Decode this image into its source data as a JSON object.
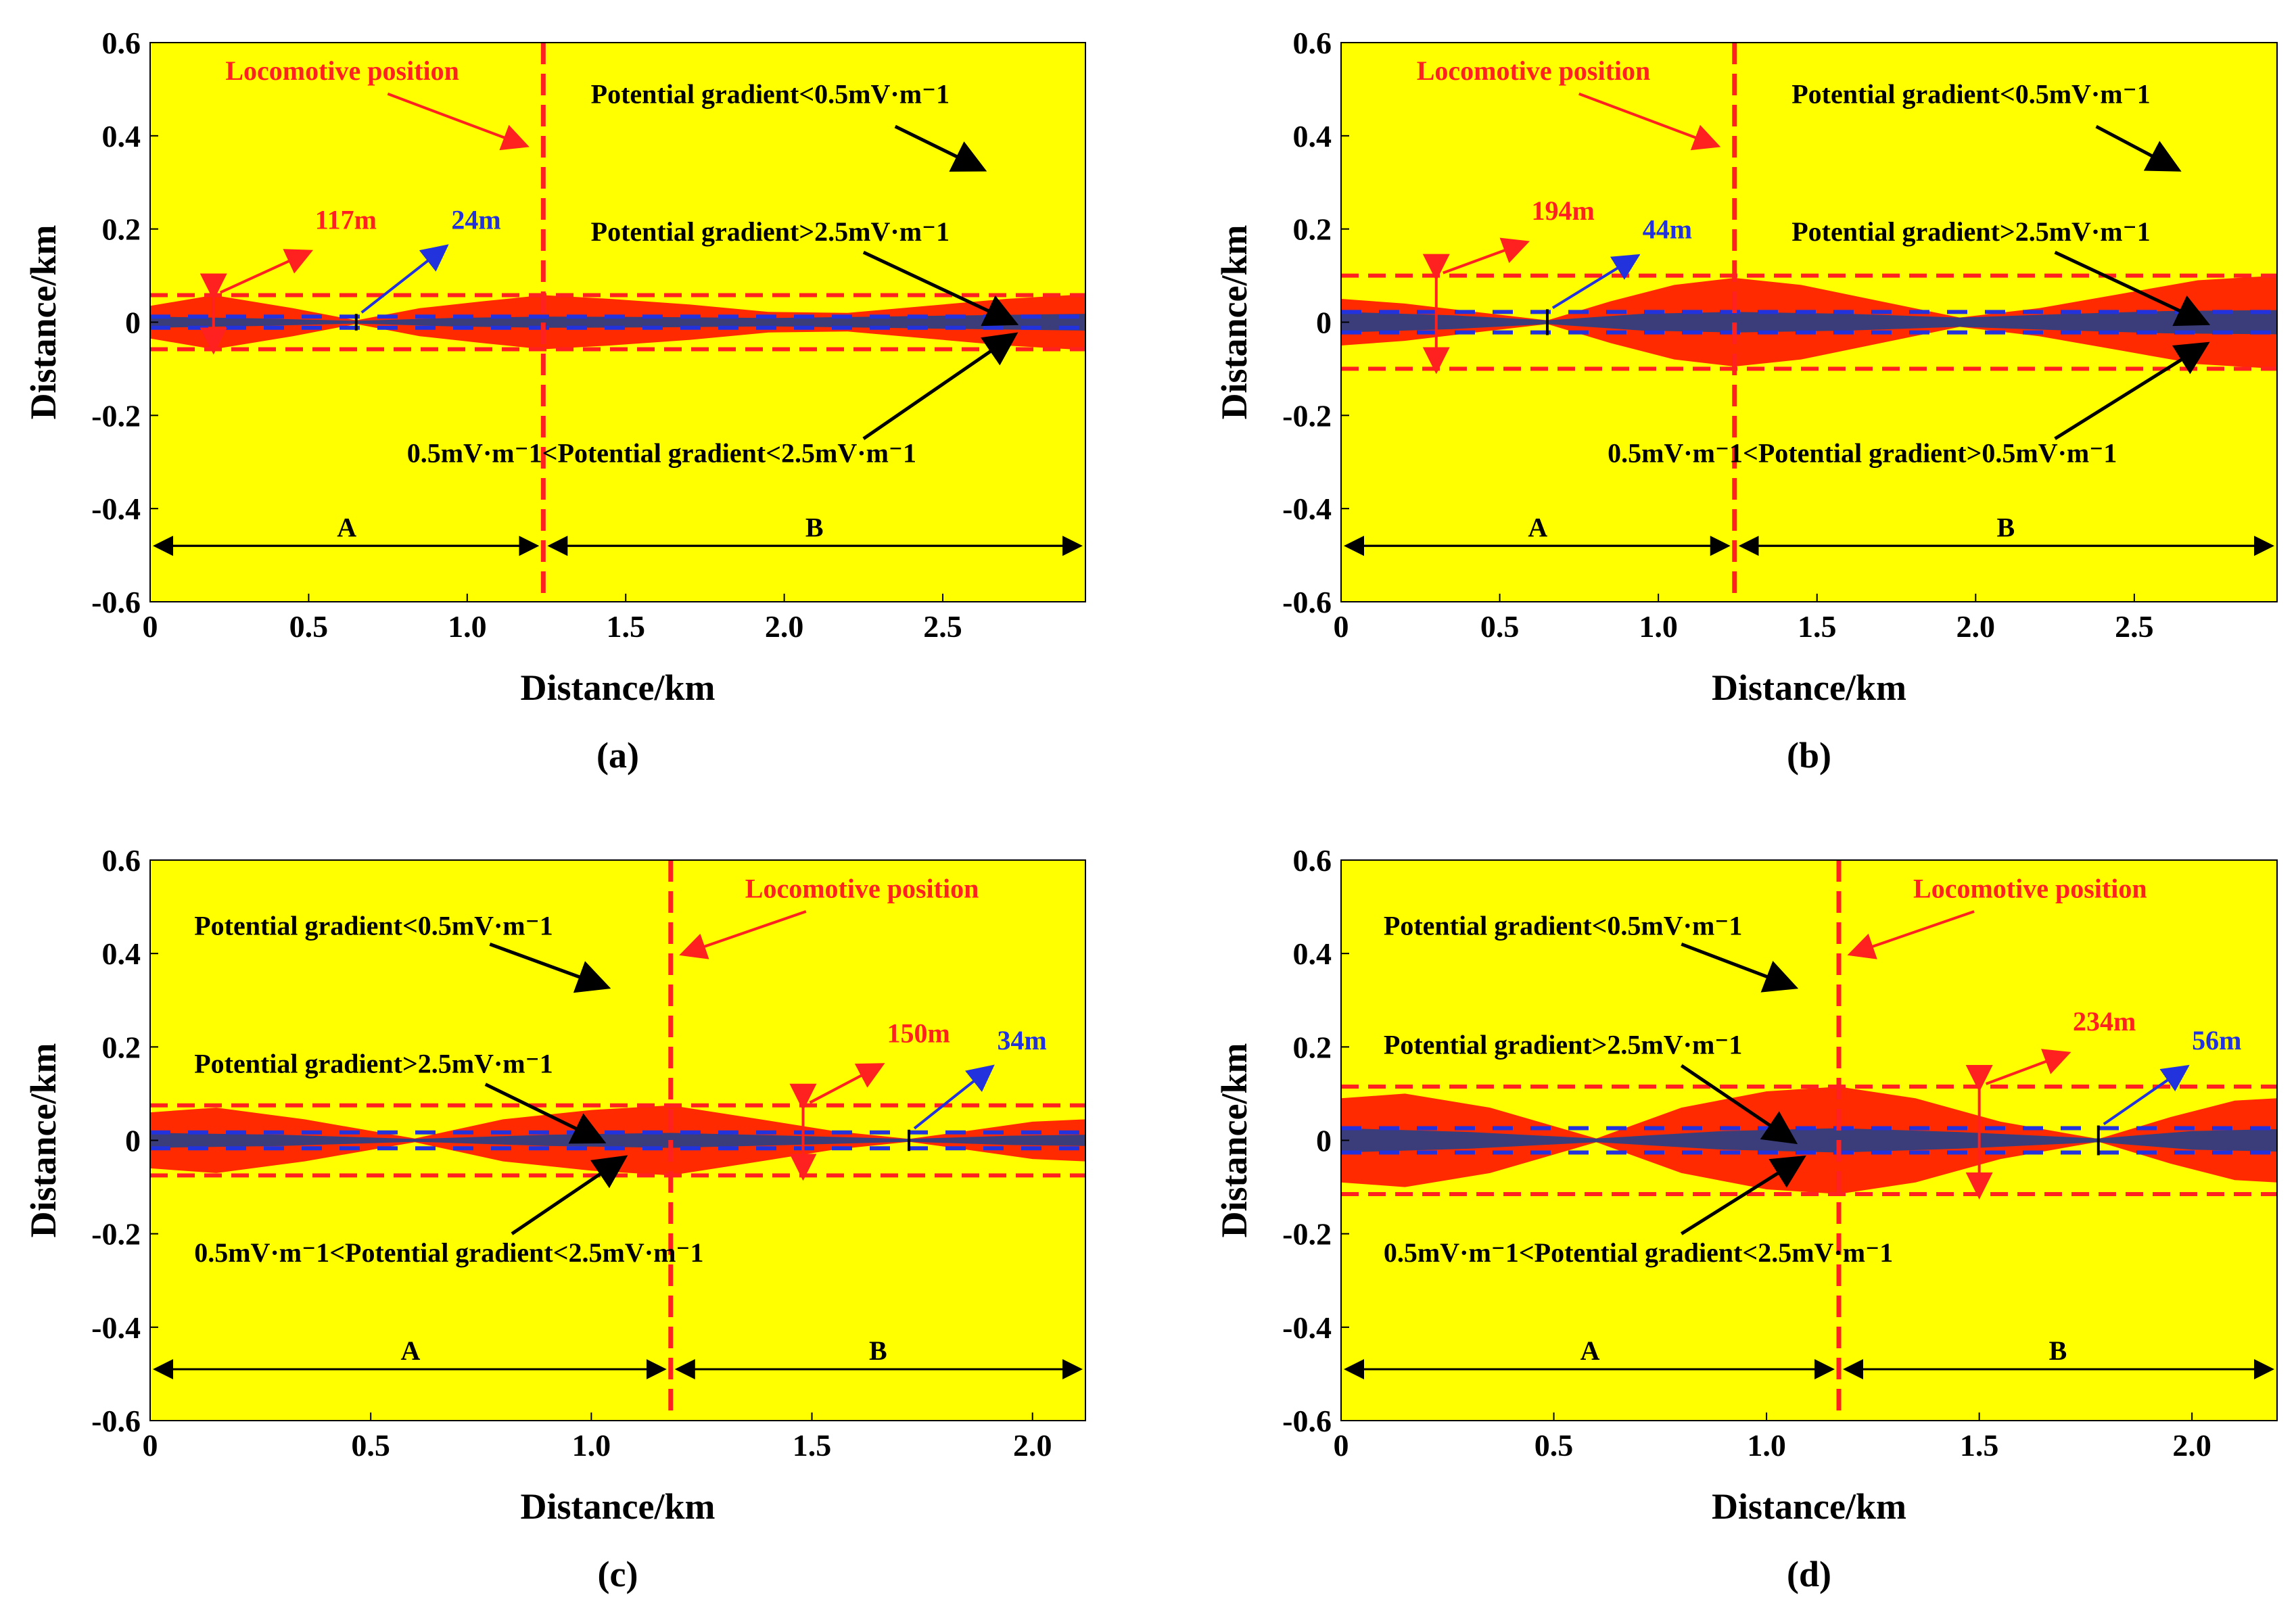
{
  "figure": {
    "colors": {
      "background": "#ffff00",
      "mid_band": "#ff2a00",
      "high_band": "#3a3d7a",
      "locomotive_line": "#ff2020",
      "blue_dash": "#2233dd",
      "black": "#000000"
    }
  },
  "chart_data": [
    {
      "type": "heatmap",
      "panel_label": "(a)",
      "xlabel": "Distance/km",
      "ylabel": "Distance/km",
      "xlim": [
        0,
        2.95
      ],
      "ylim": [
        -0.6,
        0.6
      ],
      "xticks": [
        "0",
        "0.5",
        "1.0",
        "1.5",
        "2.0",
        "2.5"
      ],
      "xtick_values": [
        0,
        0.5,
        1.0,
        1.5,
        2.0,
        2.5
      ],
      "yticks": [
        "0.6",
        "0.4",
        "0.2",
        "0",
        "-0.2",
        "-0.4",
        "-0.6"
      ],
      "ytick_values": [
        0.6,
        0.4,
        0.2,
        0,
        -0.2,
        -0.4,
        -0.6
      ],
      "locomotive_x": 1.24,
      "locomotive_label": "Locomotive position",
      "red_profile": {
        "x": [
          0,
          0.2,
          0.45,
          0.65,
          0.85,
          1.05,
          1.24,
          1.45,
          1.7,
          1.95,
          2.2,
          2.45,
          2.7,
          2.95
        ],
        "half_width": [
          0.035,
          0.058,
          0.03,
          0.004,
          0.03,
          0.045,
          0.058,
          0.05,
          0.038,
          0.022,
          0.02,
          0.035,
          0.05,
          0.06
        ]
      },
      "blue_profile": {
        "x": [
          0,
          0.35,
          0.65,
          0.95,
          1.24,
          1.6,
          1.95,
          2.3,
          2.6,
          2.95
        ],
        "half_width": [
          0.012,
          0.008,
          0.003,
          0.009,
          0.012,
          0.011,
          0.009,
          0.012,
          0.015,
          0.018
        ]
      },
      "red_dash_y": 0.058,
      "blue_dash_y": 0.012,
      "red_measure": {
        "x": 0.2,
        "label": "117m",
        "label_x": 0.52,
        "label_y": 0.2
      },
      "blue_measure": {
        "x": 0.65,
        "label": "24m",
        "label_x": 0.95,
        "label_y": 0.2
      },
      "annotations": [
        {
          "text": "Potential gradient<0.5mV·m⁻1",
          "text_x": 1.39,
          "text_y": 0.47,
          "arrow_from": [
            2.35,
            0.42
          ],
          "arrow_to": [
            2.62,
            0.33
          ],
          "color": "black"
        },
        {
          "text": "Potential gradient>2.5mV·m⁻1",
          "text_x": 1.39,
          "text_y": 0.175,
          "arrow_from": [
            2.25,
            0.15
          ],
          "arrow_to": [
            2.72,
            0.0
          ],
          "color": "black"
        },
        {
          "text": "0.5mV·m⁻1<Potential gradient<2.5mV·m⁻1",
          "text_x": 0.81,
          "text_y": -0.3,
          "arrow_from": [
            2.25,
            -0.25
          ],
          "arrow_to": [
            2.72,
            -0.03
          ],
          "color": "black"
        }
      ],
      "region_y": -0.48,
      "region_a_label": "A",
      "region_b_label": "B"
    },
    {
      "type": "heatmap",
      "panel_label": "(b)",
      "xlabel": "Distance/km",
      "ylabel": "Distance/km",
      "xlim": [
        0,
        2.95
      ],
      "ylim": [
        -0.6,
        0.6
      ],
      "xticks": [
        "0",
        "0.5",
        "1.0",
        "1.5",
        "2.0",
        "2.5"
      ],
      "xtick_values": [
        0,
        0.5,
        1.0,
        1.5,
        2.0,
        2.5
      ],
      "yticks": [
        "0.6",
        "0.4",
        "0.2",
        "0",
        "-0.2",
        "-0.4",
        "-0.6"
      ],
      "ytick_values": [
        0.6,
        0.4,
        0.2,
        0,
        -0.2,
        -0.4,
        -0.6
      ],
      "locomotive_x": 1.24,
      "locomotive_label": "Locomotive position",
      "red_profile": {
        "x": [
          0,
          0.2,
          0.45,
          0.65,
          0.85,
          1.05,
          1.24,
          1.45,
          1.7,
          1.95,
          2.2,
          2.45,
          2.7,
          2.95
        ],
        "half_width": [
          0.05,
          0.04,
          0.02,
          0.004,
          0.045,
          0.08,
          0.095,
          0.08,
          0.045,
          0.01,
          0.03,
          0.06,
          0.09,
          0.1
        ]
      },
      "blue_profile": {
        "x": [
          0,
          0.35,
          0.65,
          0.95,
          1.24,
          1.6,
          1.95,
          2.3,
          2.6,
          2.95
        ],
        "half_width": [
          0.022,
          0.015,
          0.004,
          0.018,
          0.022,
          0.018,
          0.01,
          0.018,
          0.024,
          0.026
        ]
      },
      "red_dash_y": 0.1,
      "blue_dash_y": 0.022,
      "red_measure": {
        "x": 0.3,
        "label": "194m",
        "label_x": 0.6,
        "label_y": 0.22
      },
      "blue_measure": {
        "x": 0.65,
        "label": "44m",
        "label_x": 0.95,
        "label_y": 0.18
      },
      "annotations": [
        {
          "text": "Potential gradient<0.5mV·m⁻1",
          "text_x": 1.42,
          "text_y": 0.47,
          "arrow_from": [
            2.38,
            0.42
          ],
          "arrow_to": [
            2.63,
            0.33
          ],
          "color": "black"
        },
        {
          "text": "Potential gradient>2.5mV·m⁻1",
          "text_x": 1.42,
          "text_y": 0.175,
          "arrow_from": [
            2.25,
            0.15
          ],
          "arrow_to": [
            2.72,
            0.0
          ],
          "color": "black"
        },
        {
          "text": "0.5mV·m⁻1<Potential gradient>0.5mV·m⁻1",
          "text_x": 0.84,
          "text_y": -0.3,
          "arrow_from": [
            2.25,
            -0.25
          ],
          "arrow_to": [
            2.72,
            -0.05
          ],
          "color": "black"
        }
      ],
      "region_y": -0.48,
      "region_a_label": "A",
      "region_b_label": "B"
    },
    {
      "type": "heatmap",
      "panel_label": "(c)",
      "xlabel": "Distance/km",
      "ylabel": "Distance/km",
      "xlim": [
        0,
        2.12
      ],
      "ylim": [
        -0.6,
        0.6
      ],
      "xticks": [
        "0",
        "0.5",
        "1.0",
        "1.5",
        "2.0"
      ],
      "xtick_values": [
        0,
        0.5,
        1.0,
        1.5,
        2.0
      ],
      "yticks": [
        "0.6",
        "0.4",
        "0.2",
        "0",
        "-0.2",
        "-0.4",
        "-0.6"
      ],
      "ytick_values": [
        0.6,
        0.4,
        0.2,
        0,
        -0.2,
        -0.4,
        -0.6
      ],
      "locomotive_x": 1.18,
      "locomotive_label": "Locomotive position",
      "red_profile": {
        "x": [
          0,
          0.15,
          0.35,
          0.6,
          0.8,
          1.0,
          1.18,
          1.35,
          1.55,
          1.72,
          1.85,
          2.0,
          2.12
        ],
        "half_width": [
          0.06,
          0.07,
          0.045,
          0.004,
          0.045,
          0.065,
          0.075,
          0.05,
          0.02,
          0.003,
          0.02,
          0.04,
          0.045
        ]
      },
      "blue_profile": {
        "x": [
          0,
          0.3,
          0.6,
          0.9,
          1.18,
          1.45,
          1.72,
          1.95,
          2.12
        ],
        "half_width": [
          0.016,
          0.012,
          0.003,
          0.012,
          0.016,
          0.01,
          0.003,
          0.01,
          0.012
        ]
      },
      "red_dash_y": 0.075,
      "blue_dash_y": 0.017,
      "red_measure": {
        "x": 1.48,
        "label": "150m",
        "label_x": 1.67,
        "label_y": 0.21
      },
      "blue_measure": {
        "x": 1.72,
        "label": "34m",
        "label_x": 1.92,
        "label_y": 0.195
      },
      "annotations": [
        {
          "text": "Potential gradient<0.5mV·m⁻1",
          "text_x": 0.1,
          "text_y": 0.44,
          "arrow_from": [
            0.77,
            0.42
          ],
          "arrow_to": [
            1.03,
            0.33
          ],
          "color": "black"
        },
        {
          "text": "Potential gradient>2.5mV·m⁻1",
          "text_x": 0.1,
          "text_y": 0.145,
          "arrow_from": [
            0.76,
            0.12
          ],
          "arrow_to": [
            1.02,
            0.0
          ],
          "color": "black"
        },
        {
          "text": "0.5mV·m⁻1<Potential gradient<2.5mV·m⁻1",
          "text_x": 0.1,
          "text_y": -0.26,
          "arrow_from": [
            0.82,
            -0.2
          ],
          "arrow_to": [
            1.07,
            -0.04
          ],
          "color": "black"
        }
      ],
      "region_y": -0.49,
      "region_a_label": "A",
      "region_b_label": "B"
    },
    {
      "type": "heatmap",
      "panel_label": "(d)",
      "xlabel": "Distance/km",
      "ylabel": "Distance/km",
      "xlim": [
        0,
        2.2
      ],
      "ylim": [
        -0.6,
        0.6
      ],
      "xticks": [
        "0",
        "0.5",
        "1.0",
        "1.5",
        "2.0"
      ],
      "xtick_values": [
        0,
        0.5,
        1.0,
        1.5,
        2.0
      ],
      "yticks": [
        "0.6",
        "0.4",
        "0.2",
        "0",
        "-0.2",
        "-0.4",
        "-0.6"
      ],
      "ytick_values": [
        0.6,
        0.4,
        0.2,
        0,
        -0.2,
        -0.4,
        -0.6
      ],
      "locomotive_x": 1.17,
      "locomotive_label": "Locomotive position",
      "red_profile": {
        "x": [
          0,
          0.15,
          0.35,
          0.6,
          0.8,
          1.0,
          1.17,
          1.35,
          1.55,
          1.78,
          1.95,
          2.1,
          2.2
        ],
        "half_width": [
          0.09,
          0.1,
          0.07,
          0.004,
          0.07,
          0.105,
          0.115,
          0.09,
          0.04,
          0.003,
          0.05,
          0.085,
          0.09
        ]
      },
      "blue_profile": {
        "x": [
          0,
          0.3,
          0.6,
          0.9,
          1.17,
          1.45,
          1.78,
          2.0,
          2.2
        ],
        "half_width": [
          0.026,
          0.018,
          0.004,
          0.02,
          0.026,
          0.018,
          0.004,
          0.02,
          0.024
        ]
      },
      "red_dash_y": 0.115,
      "blue_dash_y": 0.026,
      "red_measure": {
        "x": 1.5,
        "label": "234m",
        "label_x": 1.72,
        "label_y": 0.235
      },
      "blue_measure": {
        "x": 1.78,
        "label": "56m",
        "label_x": 2.0,
        "label_y": 0.195
      },
      "annotations": [
        {
          "text": "Potential gradient<0.5mV·m⁻1",
          "text_x": 0.1,
          "text_y": 0.44,
          "arrow_from": [
            0.8,
            0.42
          ],
          "arrow_to": [
            1.06,
            0.33
          ],
          "color": "black"
        },
        {
          "text": "Potential gradient>2.5mV·m⁻1",
          "text_x": 0.1,
          "text_y": 0.185,
          "arrow_from": [
            0.8,
            0.16
          ],
          "arrow_to": [
            1.06,
            0.0
          ],
          "color": "black"
        },
        {
          "text": "0.5mV·m⁻1<Potential gradient<2.5mV·m⁻1",
          "text_x": 0.1,
          "text_y": -0.26,
          "arrow_from": [
            0.8,
            -0.2
          ],
          "arrow_to": [
            1.08,
            -0.04
          ],
          "color": "black"
        }
      ],
      "region_y": -0.49,
      "region_a_label": "A",
      "region_b_label": "B"
    }
  ]
}
